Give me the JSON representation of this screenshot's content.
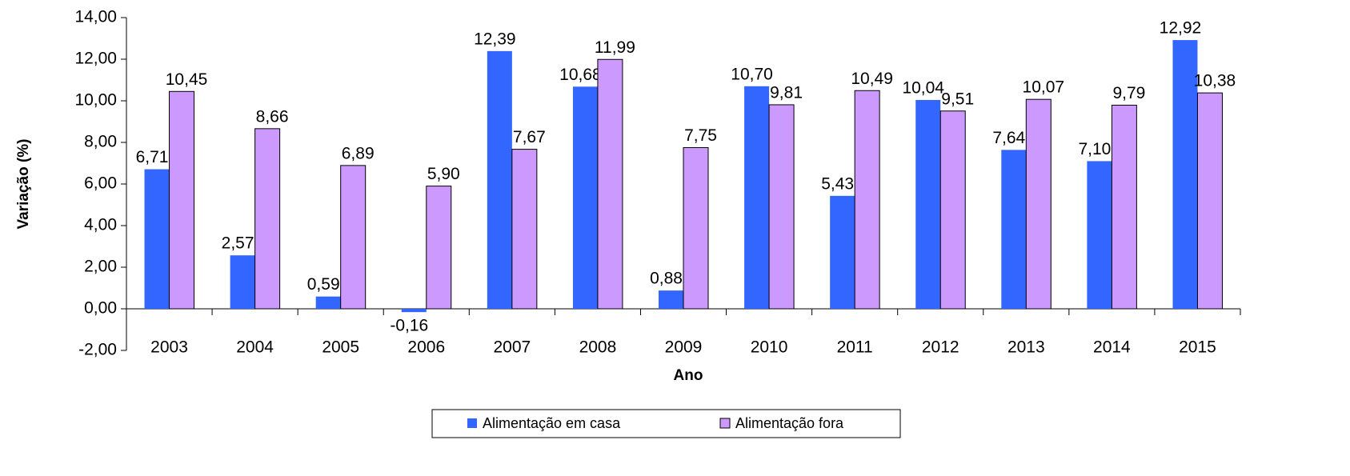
{
  "chart_data": {
    "type": "bar",
    "xlabel": "Ano",
    "ylabel": "Variação (%)",
    "categories": [
      "2003",
      "2004",
      "2005",
      "2006",
      "2007",
      "2008",
      "2009",
      "2010",
      "2011",
      "2012",
      "2013",
      "2014",
      "2015"
    ],
    "series": [
      {
        "name": "Alimentação em casa",
        "color": "#3366ff",
        "border": false,
        "values": [
          6.71,
          2.57,
          0.59,
          -0.16,
          12.39,
          10.68,
          0.88,
          10.7,
          5.43,
          10.04,
          7.64,
          7.1,
          12.92
        ],
        "value_labels": [
          "6,71",
          "2,57",
          "0,59",
          "-0,16",
          "12,39",
          "10,68",
          "0,88",
          "10,70",
          "5,43",
          "10,04",
          "7,64",
          "7,10",
          "12,92"
        ]
      },
      {
        "name": "Alimentação fora",
        "color": "#cc99ff",
        "border": true,
        "values": [
          10.45,
          8.66,
          6.89,
          5.9,
          7.67,
          11.99,
          7.75,
          9.81,
          10.49,
          9.51,
          10.07,
          9.79,
          10.38
        ],
        "value_labels": [
          "10,45",
          "8,66",
          "6,89",
          "5,90",
          "7,67",
          "11,99",
          "7,75",
          "9,81",
          "10,49",
          "9,51",
          "10,07",
          "9,79",
          "10,38"
        ]
      }
    ],
    "ylim": [
      -2,
      14
    ],
    "yticks": [
      {
        "value": -2,
        "label": "-2,00"
      },
      {
        "value": 0,
        "label": "0,00"
      },
      {
        "value": 2,
        "label": "2,00"
      },
      {
        "value": 4,
        "label": "4,00"
      },
      {
        "value": 6,
        "label": "6,00"
      },
      {
        "value": 8,
        "label": "8,00"
      },
      {
        "value": 10,
        "label": "10,00"
      },
      {
        "value": 12,
        "label": "12,00"
      },
      {
        "value": 14,
        "label": "14,00"
      }
    ],
    "grid": false,
    "legend": "bottom"
  }
}
